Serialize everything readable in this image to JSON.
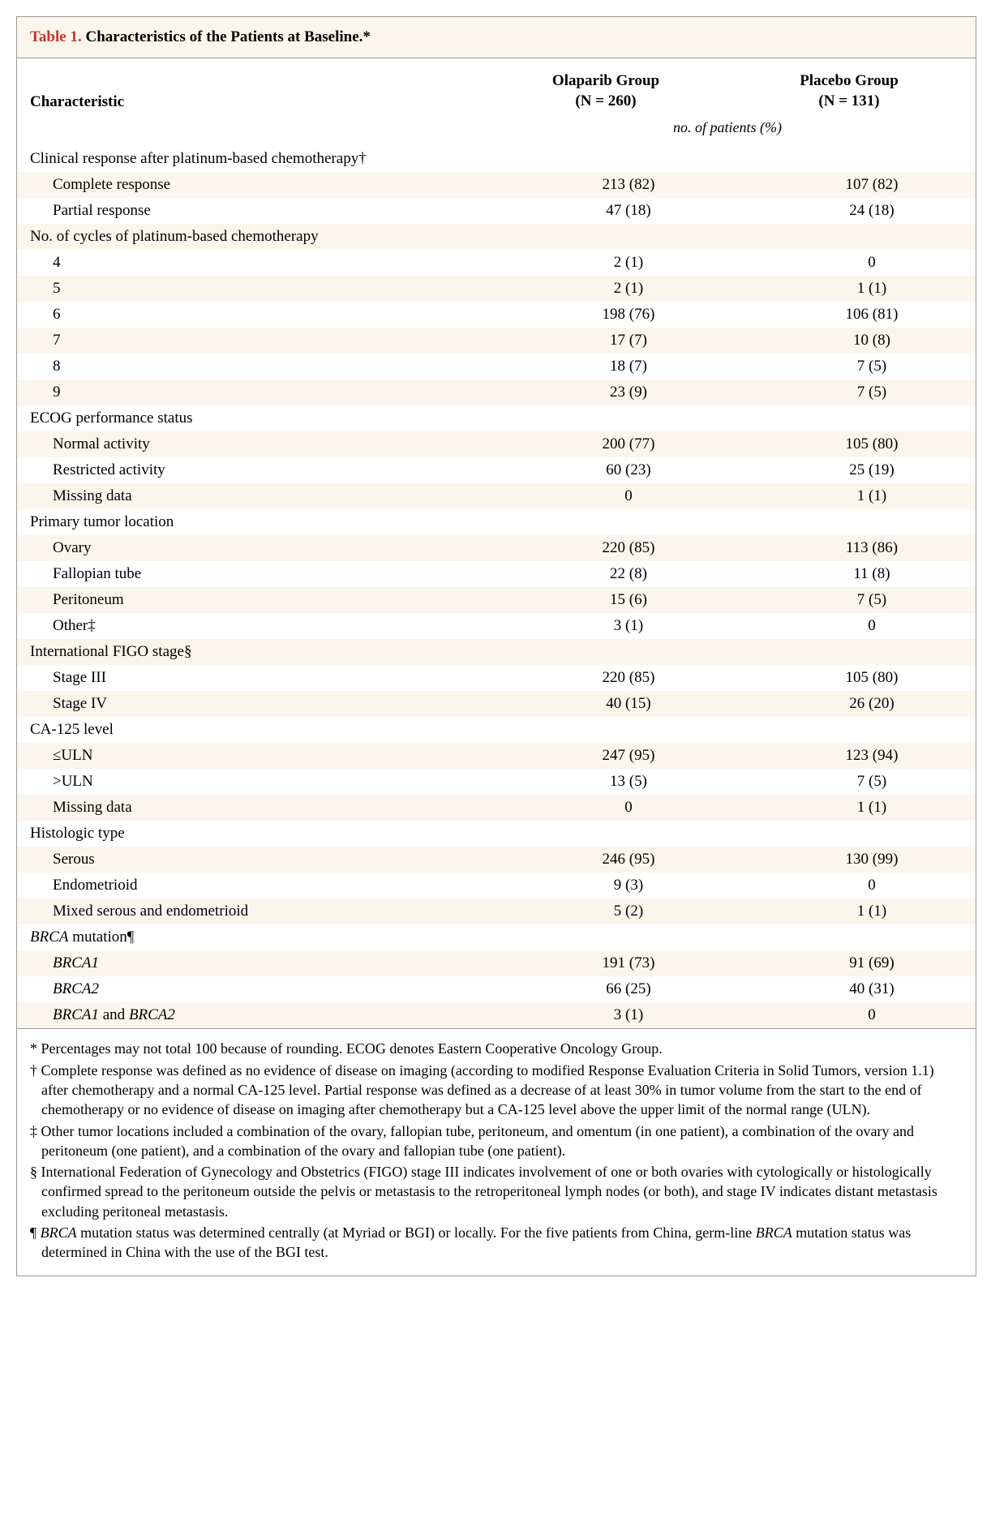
{
  "table": {
    "number_label": "Table 1.",
    "title": " Characteristics of the Patients at Baseline.*",
    "col_headers": {
      "characteristic": "Characteristic",
      "group1_line1": "Olaparib Group",
      "group1_line2": "(N = 260)",
      "group2_line1": "Placebo Group",
      "group2_line2": "(N = 131)"
    },
    "subheader": "no. of patients (%)",
    "sections": [
      {
        "label": "Clinical response after platinum-based chemotherapy†",
        "rows": [
          {
            "label": "Complete response",
            "g1": "213 (82)",
            "g2": "107 (82)"
          },
          {
            "label": "Partial response",
            "g1": "47 (18)",
            "g2": "24 (18)"
          }
        ]
      },
      {
        "label": "No. of cycles of platinum-based chemotherapy",
        "rows": [
          {
            "label": "4",
            "g1": "2 (1)",
            "g2": "0"
          },
          {
            "label": "5",
            "g1": "2 (1)",
            "g2": "1 (1)"
          },
          {
            "label": "6",
            "g1": "198 (76)",
            "g2": "106 (81)"
          },
          {
            "label": "7",
            "g1": "17 (7)",
            "g2": "10 (8)"
          },
          {
            "label": "8",
            "g1": "18 (7)",
            "g2": "7 (5)"
          },
          {
            "label": "9",
            "g1": "23 (9)",
            "g2": "7 (5)"
          }
        ]
      },
      {
        "label": "ECOG performance status",
        "rows": [
          {
            "label": "Normal activity",
            "g1": "200 (77)",
            "g2": "105 (80)"
          },
          {
            "label": "Restricted activity",
            "g1": "60 (23)",
            "g2": "25 (19)"
          },
          {
            "label": "Missing data",
            "g1": "0",
            "g2": "1 (1)"
          }
        ]
      },
      {
        "label": "Primary tumor location",
        "rows": [
          {
            "label": "Ovary",
            "g1": "220 (85)",
            "g2": "113 (86)"
          },
          {
            "label": "Fallopian tube",
            "g1": "22 (8)",
            "g2": "11 (8)"
          },
          {
            "label": "Peritoneum",
            "g1": "15 (6)",
            "g2": "7 (5)"
          },
          {
            "label": "Other‡",
            "g1": "3 (1)",
            "g2": "0"
          }
        ]
      },
      {
        "label": "International FIGO stage§",
        "rows": [
          {
            "label": "Stage III",
            "g1": "220 (85)",
            "g2": "105 (80)"
          },
          {
            "label": "Stage IV",
            "g1": "40 (15)",
            "g2": "26 (20)"
          }
        ]
      },
      {
        "label": "CA-125 level",
        "rows": [
          {
            "label": "≤ULN",
            "g1": "247 (95)",
            "g2": "123 (94)"
          },
          {
            "label": ">ULN",
            "g1": "13 (5)",
            "g2": "7 (5)"
          },
          {
            "label": "Missing data",
            "g1": "0",
            "g2": "1 (1)"
          }
        ]
      },
      {
        "label": "Histologic type",
        "rows": [
          {
            "label": "Serous",
            "g1": "246 (95)",
            "g2": "130 (99)"
          },
          {
            "label": "Endometrioid",
            "g1": "9 (3)",
            "g2": "0"
          },
          {
            "label": "Mixed serous and endometrioid",
            "g1": "5 (2)",
            "g2": "1 (1)"
          }
        ]
      },
      {
        "label": "BRCA mutation¶",
        "label_italic_prefix": "BRCA",
        "label_rest": " mutation¶",
        "rows": [
          {
            "label_italic": "BRCA1",
            "g1": "191 (73)",
            "g2": "91 (69)"
          },
          {
            "label_italic": "BRCA2",
            "g1": "66 (25)",
            "g2": "40 (31)"
          },
          {
            "label_italic_prefix": "BRCA1",
            "label_mid": " and ",
            "label_italic_suffix": "BRCA2",
            "g1": "3 (1)",
            "g2": "0"
          }
        ]
      }
    ],
    "footnotes": [
      "* Percentages may not total 100 because of rounding. ECOG denotes Eastern Cooperative Oncology Group.",
      "† Complete response was defined as no evidence of disease on imaging (according to modified Response Evaluation Criteria in Solid Tumors, version 1.1) after chemotherapy and a normal CA-125 level. Partial response was defined as a decrease of at least 30% in tumor volume from the start to the end of chemotherapy or no evidence of disease on imaging after chemotherapy but a CA-125 level above the upper limit of the normal range (ULN).",
      "‡ Other tumor locations included a combination of the ovary, fallopian tube, peritoneum, and omentum (in one patient), a combination of the ovary and peritoneum (one patient), and a combination of the ovary and fallopian tube (one patient).",
      "§ International Federation of Gynecology and Obstetrics (FIGO) stage III indicates involvement of one or both ovaries with cytologically or histologically confirmed spread to the peritoneum outside the pelvis or metastasis to the retroperitoneal lymph nodes (or both), and stage IV indicates distant metastasis excluding peritoneal metastasis.",
      "¶ BRCA mutation status was determined centrally (at Myriad or BGI) or locally. For the five patients from China, germ-line BRCA mutation status was determined in China with the use of the BGI test."
    ]
  },
  "style": {
    "stripe_bg": "#fbf6ec",
    "plain_bg": "#ffffff",
    "border_color": "#999999",
    "accent_color": "#c0392b",
    "font_body": "Georgia, 'Times New Roman', serif",
    "font_size_body": 19,
    "font_size_foot": 18
  }
}
